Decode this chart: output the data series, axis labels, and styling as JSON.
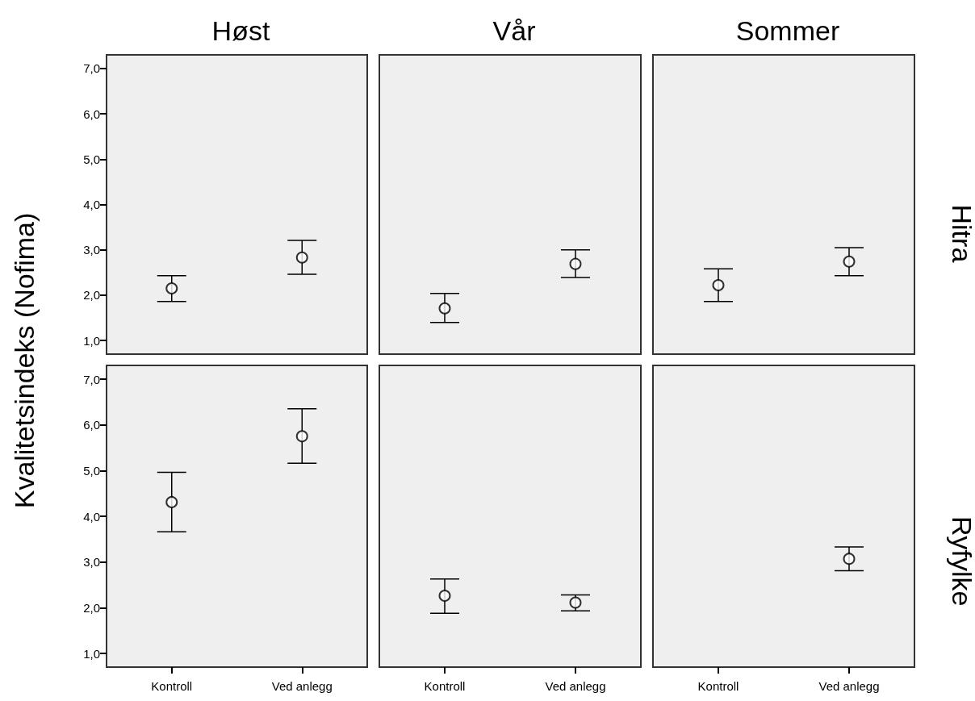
{
  "chart_data": [
    {
      "type": "scatter",
      "title": "Høst",
      "ylabel": "Kvalitetsindeks (Nofima)",
      "categories": [
        "Kontroll",
        "Ved anlegg"
      ],
      "values": [
        2.15,
        2.83
      ],
      "errors": [
        [
          1.86,
          2.43
        ],
        [
          2.46,
          3.21
        ]
      ],
      "color": "#000000",
      "marker": "circle",
      "ylim": [
        0.7,
        7.3
      ],
      "yticks": [
        {
          "value": 1,
          "label": "1,0"
        },
        {
          "value": 2,
          "label": "2,0"
        },
        {
          "value": 3,
          "label": "3,0"
        },
        {
          "value": 4,
          "label": "4,0"
        },
        {
          "value": 5,
          "label": "5,0"
        },
        {
          "value": 6,
          "label": "6,0"
        },
        {
          "value": 7,
          "label": "7,0"
        }
      ],
      "tick_labels": "y",
      "grid": false
    },
    {
      "type": "scatter",
      "title": "Vår",
      "categories": [
        "Kontroll",
        "Ved anlegg"
      ],
      "values": [
        1.71,
        2.69
      ],
      "errors": [
        [
          1.4,
          2.04
        ],
        [
          2.39,
          3.0
        ]
      ],
      "color": "#000000",
      "marker": "circle",
      "ylim": [
        0.7,
        7.3
      ],
      "yticks": [
        {
          "value": 1,
          "label": "1,0"
        },
        {
          "value": 2,
          "label": "2,0"
        },
        {
          "value": 3,
          "label": "3,0"
        },
        {
          "value": 4,
          "label": "4,0"
        },
        {
          "value": 5,
          "label": "5,0"
        },
        {
          "value": 6,
          "label": "6,0"
        },
        {
          "value": 7,
          "label": "7,0"
        }
      ],
      "tick_labels": false,
      "grid": false
    },
    {
      "type": "scatter",
      "title": "Sommer",
      "y2label": "Hitra",
      "categories": [
        "Kontroll",
        "Ved anlegg"
      ],
      "values": [
        2.22,
        2.74
      ],
      "errors": [
        [
          1.86,
          2.58
        ],
        [
          2.43,
          3.05
        ]
      ],
      "color": "#000000",
      "marker": "circle",
      "ylim": [
        0.7,
        7.3
      ],
      "yticks": [
        {
          "value": 1,
          "label": "1,0"
        },
        {
          "value": 2,
          "label": "2,0"
        },
        {
          "value": 3,
          "label": "3,0"
        },
        {
          "value": 4,
          "label": "4,0"
        },
        {
          "value": 5,
          "label": "5,0"
        },
        {
          "value": 6,
          "label": "6,0"
        },
        {
          "value": 7,
          "label": "7,0"
        }
      ],
      "tick_labels": false,
      "grid": false
    },
    {
      "type": "scatter",
      "categories": [
        "Kontroll",
        "Ved anlegg"
      ],
      "values": [
        4.31,
        5.75
      ],
      "errors": [
        [
          3.66,
          4.96
        ],
        [
          5.16,
          6.35
        ]
      ],
      "color": "#000000",
      "marker": "circle",
      "ylim": [
        0.7,
        7.3
      ],
      "yticks": [
        {
          "value": 1,
          "label": "1,0"
        },
        {
          "value": 2,
          "label": "2,0"
        },
        {
          "value": 3,
          "label": "3,0"
        },
        {
          "value": 4,
          "label": "4,0"
        },
        {
          "value": 5,
          "label": "5,0"
        },
        {
          "value": 6,
          "label": "6,0"
        },
        {
          "value": 7,
          "label": "7,0"
        }
      ],
      "grid": false
    },
    {
      "type": "scatter",
      "categories": [
        "Kontroll",
        "Ved anlegg"
      ],
      "values": [
        2.26,
        2.11
      ],
      "errors": [
        [
          1.88,
          2.63
        ],
        [
          1.93,
          2.28
        ]
      ],
      "color": "#000000",
      "marker": "circle",
      "ylim": [
        0.7,
        7.3
      ],
      "yticks": [
        {
          "value": 1,
          "label": "1,0"
        },
        {
          "value": 2,
          "label": "2,0"
        },
        {
          "value": 3,
          "label": "3,0"
        },
        {
          "value": 4,
          "label": "4,0"
        },
        {
          "value": 5,
          "label": "5,0"
        },
        {
          "value": 6,
          "label": "6,0"
        },
        {
          "value": 7,
          "label": "7,0"
        }
      ],
      "tick_labels": "x",
      "grid": false
    },
    {
      "type": "scatter",
      "y2label": "Ryfylke",
      "categories": [
        "Kontroll",
        "Ved anlegg"
      ],
      "values": [
        null,
        3.07
      ],
      "errors": [
        null,
        [
          2.81,
          3.33
        ]
      ],
      "color": "#000000",
      "marker": "circle",
      "ylim": [
        0.7,
        7.3
      ],
      "yticks": [
        {
          "value": 1,
          "label": "1,0"
        },
        {
          "value": 2,
          "label": "2,0"
        },
        {
          "value": 3,
          "label": "3,0"
        },
        {
          "value": 4,
          "label": "4,0"
        },
        {
          "value": 5,
          "label": "5,0"
        },
        {
          "value": 6,
          "label": "6,0"
        },
        {
          "value": 7,
          "label": "7,0"
        }
      ],
      "tick_labels": "x",
      "grid": false
    }
  ]
}
